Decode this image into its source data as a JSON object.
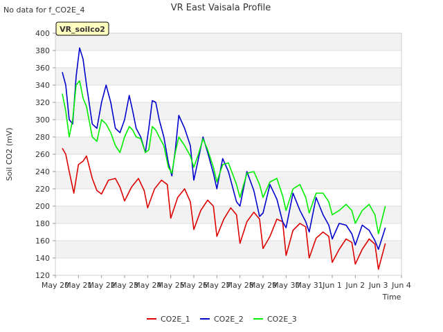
{
  "note": "No data for f_CO2E_4",
  "chart_data": {
    "type": "line",
    "title": "VR East Vaisala Profile",
    "xlabel": "Time",
    "ylabel": "Soil CO2 (mV)",
    "badge": "VR_soilco2",
    "ylim": [
      120,
      400
    ],
    "xlim": [
      0,
      15
    ],
    "yticks": [
      120,
      140,
      160,
      180,
      200,
      220,
      240,
      260,
      280,
      300,
      320,
      340,
      360,
      380,
      400
    ],
    "xticks": [
      "May 20",
      "May 21",
      "May 22",
      "May 23",
      "May 24",
      "May 25",
      "May 26",
      "May 27",
      "May 28",
      "May 29",
      "May 30",
      "May 31",
      "Jun 1",
      "Jun 2",
      "Jun 3",
      "Jun 4"
    ],
    "grid": true,
    "legend": "bottom-center",
    "series": [
      {
        "name": "CO2E_1",
        "color": "#dd0000",
        "x": [
          0.3,
          0.45,
          0.6,
          0.8,
          1.0,
          1.2,
          1.35,
          1.6,
          1.8,
          2.0,
          2.3,
          2.6,
          2.8,
          3.0,
          3.3,
          3.6,
          3.85,
          4.0,
          4.3,
          4.6,
          4.85,
          5.0,
          5.3,
          5.6,
          5.85,
          6.0,
          6.3,
          6.6,
          6.85,
          7.0,
          7.3,
          7.6,
          7.85,
          8.0,
          8.3,
          8.6,
          8.85,
          9.0,
          9.3,
          9.6,
          9.85,
          10.0,
          10.3,
          10.6,
          10.85,
          11.0,
          11.3,
          11.6,
          11.85,
          12.0,
          12.3,
          12.6,
          12.85,
          13.0,
          13.3,
          13.6,
          13.85,
          14.0,
          14.3
        ],
        "y": [
          267,
          260,
          240,
          215,
          248,
          252,
          258,
          232,
          218,
          214,
          230,
          232,
          222,
          206,
          222,
          232,
          218,
          198,
          220,
          230,
          225,
          186,
          210,
          220,
          205,
          173,
          195,
          207,
          200,
          165,
          185,
          198,
          190,
          157,
          182,
          193,
          185,
          151,
          165,
          185,
          182,
          143,
          172,
          180,
          176,
          140,
          163,
          170,
          165,
          135,
          150,
          162,
          158,
          133,
          150,
          162,
          156,
          127,
          157
        ]
      },
      {
        "name": "CO2E_2",
        "color": "#0000cc",
        "x": [
          0.3,
          0.45,
          0.6,
          0.75,
          0.9,
          1.05,
          1.2,
          1.35,
          1.6,
          1.8,
          2.0,
          2.2,
          2.4,
          2.6,
          2.8,
          3.0,
          3.2,
          3.35,
          3.5,
          3.7,
          3.9,
          4.05,
          4.2,
          4.35,
          4.5,
          4.7,
          4.9,
          5.05,
          5.2,
          5.35,
          5.6,
          5.85,
          6.0,
          6.2,
          6.4,
          6.6,
          6.85,
          7.0,
          7.25,
          7.5,
          7.85,
          8.0,
          8.3,
          8.6,
          8.85,
          9.0,
          9.3,
          9.6,
          9.85,
          10.0,
          10.3,
          10.6,
          10.85,
          11.0,
          11.3,
          11.6,
          11.85,
          12.0,
          12.3,
          12.6,
          12.85,
          13.0,
          13.3,
          13.6,
          13.85,
          14.0,
          14.3
        ],
        "y": [
          355,
          340,
          300,
          295,
          350,
          383,
          370,
          340,
          295,
          290,
          320,
          340,
          320,
          290,
          285,
          300,
          328,
          310,
          290,
          280,
          262,
          290,
          322,
          320,
          300,
          280,
          250,
          235,
          265,
          305,
          290,
          270,
          230,
          255,
          280,
          262,
          238,
          220,
          255,
          240,
          205,
          200,
          240,
          218,
          188,
          192,
          225,
          208,
          182,
          175,
          215,
          195,
          182,
          170,
          210,
          190,
          178,
          162,
          180,
          178,
          168,
          155,
          178,
          172,
          160,
          150,
          175
        ]
      },
      {
        "name": "CO2E_3",
        "color": "#00ee00",
        "x": [
          0.3,
          0.45,
          0.6,
          0.75,
          0.9,
          1.05,
          1.2,
          1.35,
          1.6,
          1.8,
          2.0,
          2.2,
          2.4,
          2.6,
          2.8,
          3.0,
          3.2,
          3.35,
          3.5,
          3.7,
          3.9,
          4.05,
          4.2,
          4.35,
          4.5,
          4.7,
          4.9,
          5.05,
          5.2,
          5.35,
          5.6,
          5.85,
          6.0,
          6.2,
          6.4,
          6.6,
          6.85,
          7.0,
          7.25,
          7.5,
          7.85,
          8.0,
          8.3,
          8.6,
          8.85,
          9.0,
          9.3,
          9.6,
          9.85,
          10.0,
          10.3,
          10.6,
          10.85,
          11.0,
          11.3,
          11.6,
          11.85,
          12.0,
          12.3,
          12.6,
          12.85,
          13.0,
          13.3,
          13.6,
          13.85,
          14.0,
          14.3
        ],
        "y": [
          330,
          310,
          280,
          300,
          340,
          345,
          325,
          315,
          280,
          275,
          300,
          295,
          285,
          270,
          262,
          280,
          292,
          288,
          280,
          278,
          262,
          265,
          292,
          288,
          280,
          270,
          245,
          238,
          262,
          280,
          270,
          258,
          245,
          260,
          278,
          265,
          245,
          228,
          248,
          250,
          225,
          210,
          238,
          240,
          225,
          210,
          228,
          232,
          212,
          195,
          220,
          225,
          210,
          192,
          215,
          215,
          205,
          190,
          195,
          202,
          195,
          180,
          195,
          202,
          190,
          168,
          200
        ]
      }
    ]
  }
}
